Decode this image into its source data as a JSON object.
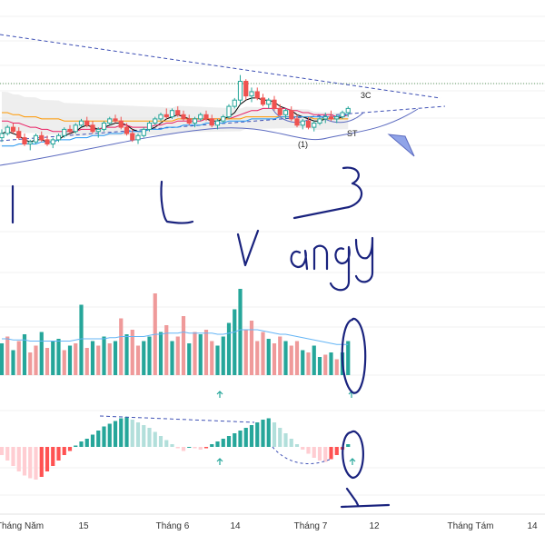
{
  "chart_data": {
    "type": "candlestick",
    "x_axis_labels": [
      "Tháng Năm",
      "15",
      "Tháng 6",
      "14",
      "Tháng 7",
      "12",
      "Tháng Tám",
      "14"
    ],
    "annotations": {
      "label_3c": "3C",
      "label_st": "ST",
      "label_1": "(1)"
    },
    "handwriting": {
      "words": "l  L  3/Vàng",
      "volume_circle_note": "O",
      "macd_note": "1"
    },
    "colors": {
      "up": "#26a69a",
      "down": "#ef5350",
      "volume_up": "#26a69a",
      "volume_down": "#ef9a9a",
      "macd_up_strong": "#26a69a",
      "macd_up_weak": "#b2dfdb",
      "macd_down_strong": "#ff5252",
      "macd_down_weak": "#ffcdd2",
      "trendline": "#3f51b5",
      "ma_fast": "#000000",
      "ma_mid": "#e91e63",
      "ma_slow": "#ff9800",
      "ma_long": "#2196f3",
      "volume_ma": "#64b5f6",
      "handwriting": "#1a237e",
      "arrow_teal": "#26a69a"
    },
    "price": {
      "ohlc": [
        [
          48,
          52,
          46,
          50
        ],
        [
          50,
          54,
          49,
          53
        ],
        [
          53,
          55,
          50,
          51
        ],
        [
          51,
          53,
          47,
          48
        ],
        [
          48,
          50,
          44,
          45
        ],
        [
          45,
          47,
          42,
          46
        ],
        [
          46,
          50,
          45,
          49
        ],
        [
          49,
          51,
          46,
          47
        ],
        [
          47,
          49,
          44,
          45
        ],
        [
          45,
          48,
          43,
          47
        ],
        [
          47,
          50,
          46,
          49
        ],
        [
          49,
          53,
          48,
          52
        ],
        [
          52,
          54,
          50,
          51
        ],
        [
          51,
          55,
          50,
          54
        ],
        [
          54,
          57,
          53,
          56
        ],
        [
          56,
          58,
          53,
          54
        ],
        [
          54,
          56,
          50,
          51
        ],
        [
          51,
          53,
          48,
          52
        ],
        [
          52,
          56,
          51,
          55
        ],
        [
          55,
          58,
          54,
          57
        ],
        [
          57,
          59,
          55,
          56
        ],
        [
          56,
          58,
          52,
          53
        ],
        [
          53,
          55,
          49,
          50
        ],
        [
          50,
          52,
          46,
          47
        ],
        [
          47,
          50,
          45,
          49
        ],
        [
          49,
          53,
          48,
          52
        ],
        [
          52,
          56,
          51,
          55
        ],
        [
          55,
          58,
          54,
          57
        ],
        [
          57,
          60,
          56,
          59
        ],
        [
          59,
          62,
          57,
          58
        ],
        [
          58,
          62,
          57,
          61
        ],
        [
          61,
          63,
          58,
          59
        ],
        [
          59,
          61,
          56,
          57
        ],
        [
          57,
          59,
          54,
          55
        ],
        [
          55,
          58,
          53,
          57
        ],
        [
          57,
          60,
          56,
          59
        ],
        [
          59,
          61,
          56,
          57
        ],
        [
          57,
          59,
          53,
          54
        ],
        [
          54,
          57,
          52,
          56
        ],
        [
          56,
          59,
          55,
          58
        ],
        [
          58,
          64,
          57,
          63
        ],
        [
          63,
          67,
          62,
          66
        ],
        [
          66,
          78,
          64,
          75
        ],
        [
          75,
          76,
          66,
          68
        ],
        [
          68,
          72,
          65,
          70
        ],
        [
          70,
          72,
          66,
          67
        ],
        [
          67,
          69,
          63,
          64
        ],
        [
          64,
          67,
          62,
          66
        ],
        [
          66,
          68,
          61,
          62
        ],
        [
          62,
          64,
          58,
          59
        ],
        [
          59,
          62,
          57,
          61
        ],
        [
          61,
          63,
          56,
          57
        ],
        [
          57,
          59,
          53,
          54
        ],
        [
          54,
          57,
          52,
          56
        ],
        [
          56,
          58,
          52,
          53
        ],
        [
          53,
          56,
          51,
          55
        ],
        [
          55,
          58,
          54,
          57
        ],
        [
          57,
          60,
          55,
          58
        ],
        [
          58,
          61,
          56,
          57
        ],
        [
          57,
          59,
          55,
          58
        ],
        [
          58,
          61,
          57,
          60
        ],
        [
          60,
          63,
          58,
          62
        ]
      ],
      "ma_fast": [
        50,
        51,
        50,
        49,
        47,
        46,
        47,
        47,
        46,
        46,
        47,
        49,
        50,
        51,
        53,
        54,
        53,
        52,
        53,
        54,
        55,
        55,
        54,
        52,
        51,
        51,
        52,
        53,
        55,
        57,
        58,
        59,
        58,
        57,
        57,
        57,
        57,
        56,
        56,
        57,
        58,
        60,
        64,
        66,
        67,
        67,
        66,
        66,
        65,
        63,
        62,
        61,
        59,
        58,
        57,
        56,
        56,
        57,
        57,
        57,
        58,
        59
      ],
      "ma_mid": [
        56,
        56,
        55,
        55,
        54,
        53,
        53,
        52,
        52,
        51,
        51,
        51,
        51,
        51,
        52,
        52,
        52,
        52,
        53,
        53,
        53,
        54,
        54,
        53,
        53,
        53,
        53,
        54,
        54,
        55,
        55,
        56,
        56,
        56,
        56,
        56,
        57,
        57,
        57,
        57,
        57,
        58,
        59,
        60,
        61,
        61,
        62,
        62,
        62,
        62,
        62,
        61,
        61,
        60,
        60,
        59,
        59,
        59,
        59,
        58,
        58,
        59
      ],
      "ma_slow": [
        60,
        60,
        59,
        59,
        58,
        58,
        58,
        57,
        57,
        57,
        57,
        56,
        56,
        56,
        56,
        56,
        56,
        56,
        56,
        56,
        56,
        56,
        56,
        56,
        56,
        56,
        56,
        56,
        56,
        56,
        56,
        57,
        57,
        57,
        57,
        57,
        57,
        57,
        57,
        57,
        57,
        57,
        57,
        58,
        58,
        58,
        58,
        58,
        58,
        58,
        58,
        58,
        58,
        58,
        58,
        57,
        57,
        57,
        57,
        57,
        57,
        57
      ],
      "ma_long": [
        44,
        44,
        44,
        45,
        45,
        45,
        45,
        46,
        46,
        46,
        47,
        47,
        47,
        48,
        48,
        48,
        49,
        49,
        49,
        50,
        50,
        50,
        51,
        51,
        51,
        51,
        52,
        52,
        52,
        53,
        53,
        53,
        54,
        54,
        54,
        54,
        55,
        55,
        55,
        55,
        56,
        56,
        56,
        56,
        57,
        57,
        57,
        57,
        57,
        58,
        58,
        58,
        58,
        58,
        58,
        58,
        58,
        58,
        58,
        58,
        59,
        59
      ]
    },
    "volume": {
      "values": [
        28,
        34,
        22,
        30,
        36,
        20,
        26,
        38,
        24,
        30,
        32,
        22,
        26,
        28,
        62,
        24,
        30,
        26,
        34,
        28,
        30,
        50,
        36,
        40,
        26,
        30,
        34,
        72,
        38,
        44,
        30,
        34,
        52,
        28,
        38,
        36,
        40,
        30,
        26,
        34,
        46,
        58,
        76,
        40,
        48,
        30,
        38,
        32,
        28,
        34,
        30,
        26,
        30,
        22,
        20,
        26,
        16,
        18,
        20,
        14,
        20,
        30
      ],
      "up": [
        true,
        false,
        true,
        false,
        true,
        false,
        false,
        true,
        false,
        true,
        true,
        false,
        true,
        false,
        true,
        false,
        true,
        false,
        true,
        false,
        true,
        false,
        true,
        false,
        false,
        true,
        true,
        false,
        true,
        false,
        true,
        false,
        false,
        true,
        false,
        true,
        false,
        false,
        true,
        true,
        true,
        true,
        true,
        false,
        false,
        false,
        false,
        true,
        false,
        false,
        true,
        false,
        false,
        true,
        false,
        true,
        true,
        false,
        true,
        false,
        true,
        true
      ],
      "ma": [
        32,
        32,
        31,
        31,
        31,
        30,
        30,
        30,
        30,
        30,
        30,
        30,
        30,
        31,
        32,
        32,
        32,
        32,
        32,
        33,
        33,
        34,
        34,
        34,
        34,
        34,
        35,
        36,
        36,
        37,
        37,
        37,
        38,
        37,
        37,
        37,
        37,
        37,
        36,
        36,
        37,
        38,
        40,
        40,
        40,
        40,
        39,
        38,
        37,
        36,
        36,
        35,
        34,
        33,
        32,
        31,
        30,
        29,
        28,
        27,
        27,
        27
      ]
    },
    "macd": {
      "values": [
        -6,
        -10,
        -14,
        -18,
        -21,
        -23,
        -24,
        -22,
        -18,
        -14,
        -10,
        -6,
        -3,
        1,
        4,
        6,
        9,
        12,
        15,
        17,
        19,
        21,
        22,
        20,
        18,
        16,
        14,
        11,
        8,
        5,
        2,
        -1,
        -3,
        0,
        -1,
        -2,
        -1,
        2,
        4,
        6,
        8,
        10,
        12,
        14,
        16,
        18,
        20,
        21,
        18,
        14,
        10,
        6,
        2,
        -2,
        -5,
        -8,
        -10,
        -11,
        -9,
        -6,
        -2,
        2
      ]
    }
  }
}
